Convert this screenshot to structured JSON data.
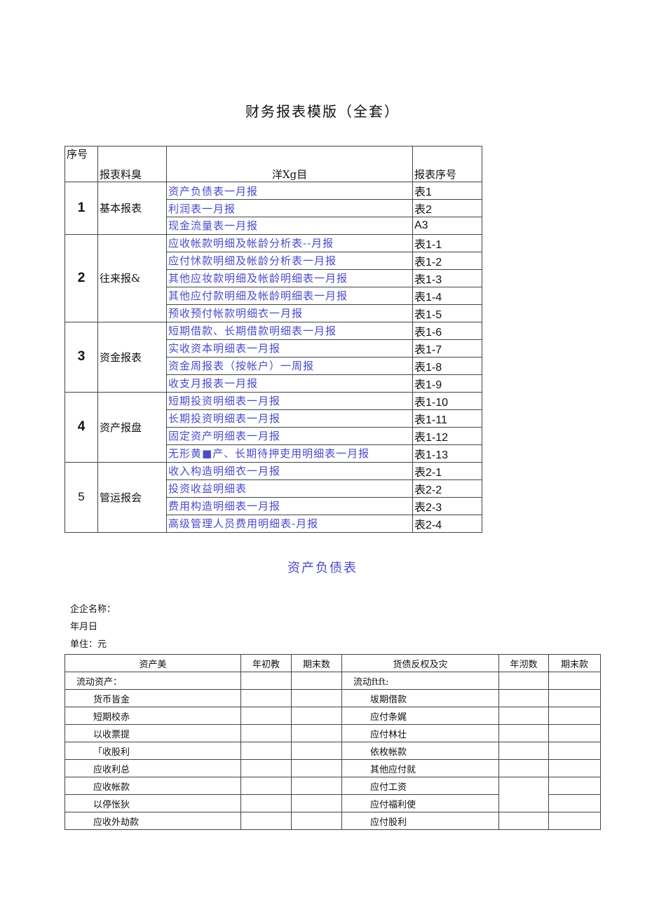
{
  "title": "财务报表模版（全套）",
  "index_table": {
    "headers": {
      "seq": "序号",
      "category": "报衷料臭",
      "item": "洋Xg目",
      "code": "报表序号"
    },
    "groups": [
      {
        "num": "1",
        "name": "基本报表",
        "rows": [
          [
            "资产负债表一月报",
            "表1"
          ],
          [
            "利润表一月报",
            "表2"
          ],
          [
            "现金流量表一月报",
            "A3"
          ]
        ]
      },
      {
        "num": "2",
        "name": "往来报&",
        "rows": [
          [
            "应收帐款明细及帐龄分析表--月报",
            "表1-1"
          ],
          [
            "应付怵款明细及帐龄分析表一月报",
            "表1-2"
          ],
          [
            "其他应妆款明细及帐龄明细表一月报",
            "表1-3"
          ],
          [
            "其他应付款明细及帐龄明细表一月报",
            "表1-4"
          ],
          [
            "预收预付帐款明细衣一月报",
            "表1-5"
          ]
        ]
      },
      {
        "num": "3",
        "name": "资金报表",
        "rows": [
          [
            "短期借款、长期借款明细表一月报",
            "表1-6"
          ],
          [
            "实收资本明细表一月报",
            "表1-7"
          ],
          [
            "资金周报表（按帐户）一周报",
            "表1-8"
          ],
          [
            "收支月报表一月报",
            "表1-9"
          ]
        ]
      },
      {
        "num": "4",
        "name": "资产报盘",
        "rows": [
          [
            "短期投资明细表一月报",
            "表1-10"
          ],
          [
            "长期投资明细表一月报",
            "表1-11"
          ],
          [
            "固定资产明细表一月报",
            "表1-12"
          ],
          [
            "无形黄■产、长期待押吏用明细表一月报",
            "表1-13"
          ]
        ]
      },
      {
        "num": "5",
        "name": "管运报会",
        "rows": [
          [
            "收入构造明细衣一月报",
            "表2-1"
          ],
          [
            "投资收益明细表",
            "表2-2"
          ],
          [
            "费用构造明细表一月报",
            "表2-3"
          ],
          [
            "高级管理人员费用明细表-月报",
            "表2-4"
          ]
        ]
      }
    ]
  },
  "balance_sheet": {
    "title": "资产负债表",
    "company": "企企名称：",
    "date": "年月日",
    "unit": "单住：元",
    "headers": [
      "资产美",
      "年初教",
      "期末数",
      "货债反权及灾",
      "年沏数",
      "期末款"
    ],
    "section_left": "流动资产：",
    "section_right": "流动ftft:",
    "left_items": [
      "货币皆金",
      "短期校赤",
      "以收票提",
      "「收股利",
      "应收利总",
      "应收帐款",
      "以停怅狄",
      "应收外劫款"
    ],
    "right_items": [
      "坺期借款",
      "应付条娓",
      "应付林壮",
      "依枚帐款",
      "其他应付就",
      "应付工资",
      "应付福利使",
      "应付股利"
    ]
  }
}
